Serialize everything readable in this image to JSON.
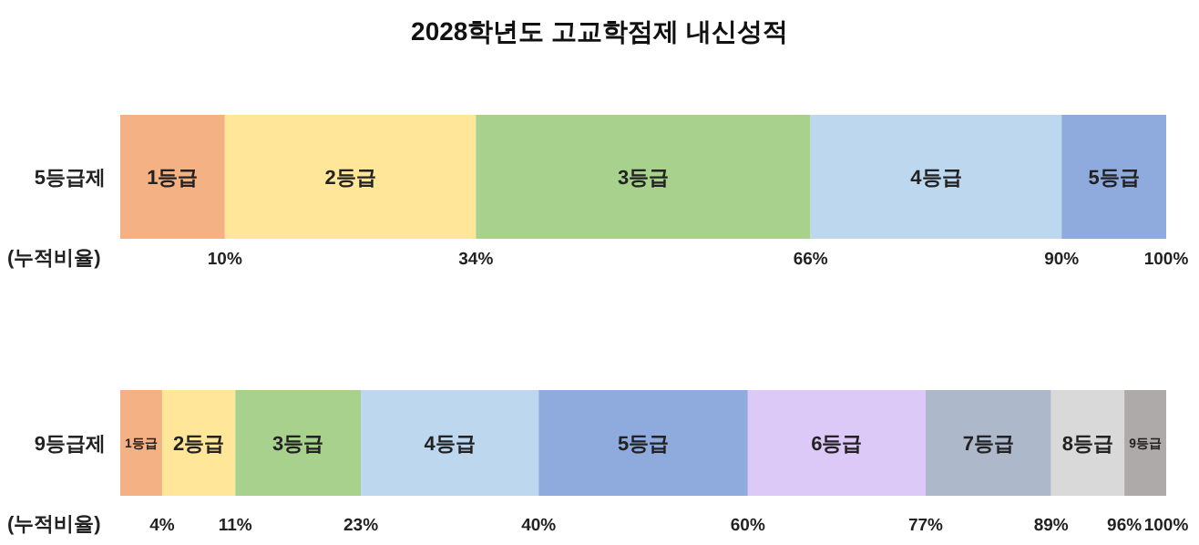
{
  "chart_data": [
    {
      "type": "bar",
      "title": "2028학년도 고교학점제 내신성적",
      "orientation": "horizontal",
      "stacked": true,
      "categories": [
        "5등급제"
      ],
      "xlabel": "(누적비율)",
      "xlim": [
        0,
        100
      ],
      "xticks": [
        {
          "value": 10,
          "label": "10%"
        },
        {
          "value": 34,
          "label": "34%"
        },
        {
          "value": 66,
          "label": "66%"
        },
        {
          "value": 90,
          "label": "90%"
        },
        {
          "value": 100,
          "label": "100%"
        }
      ],
      "tick_labels": "x",
      "legend": false,
      "grid": false,
      "series": [
        {
          "name": "1등급",
          "color": "#f4b183",
          "values": [
            10
          ]
        },
        {
          "name": "2등급",
          "color": "#ffe699",
          "values": [
            24
          ]
        },
        {
          "name": "3등급",
          "color": "#a9d18e",
          "values": [
            32
          ]
        },
        {
          "name": "4등급",
          "color": "#bdd7ee",
          "values": [
            24
          ]
        },
        {
          "name": "5등급",
          "color": "#8faadc",
          "values": [
            10
          ]
        }
      ]
    },
    {
      "type": "bar",
      "orientation": "horizontal",
      "stacked": true,
      "categories": [
        "9등급제"
      ],
      "xlabel": "(누적비율)",
      "xlim": [
        0,
        100
      ],
      "xticks": [
        {
          "value": 4,
          "label": "4%"
        },
        {
          "value": 11,
          "label": "11%"
        },
        {
          "value": 23,
          "label": "23%"
        },
        {
          "value": 40,
          "label": "40%"
        },
        {
          "value": 60,
          "label": "60%"
        },
        {
          "value": 77,
          "label": "77%"
        },
        {
          "value": 89,
          "label": "89%"
        },
        {
          "value": 96,
          "label": "96%"
        },
        {
          "value": 100,
          "label": "100%"
        }
      ],
      "tick_labels": "x",
      "legend": false,
      "grid": false,
      "series": [
        {
          "name": "1등급",
          "color": "#f4b183",
          "values": [
            4
          ]
        },
        {
          "name": "2등급",
          "color": "#ffe699",
          "values": [
            7
          ]
        },
        {
          "name": "3등급",
          "color": "#a9d18e",
          "values": [
            12
          ]
        },
        {
          "name": "4등급",
          "color": "#bdd7ee",
          "values": [
            17
          ]
        },
        {
          "name": "5등급",
          "color": "#8faadc",
          "values": [
            20
          ]
        },
        {
          "name": "6등급",
          "color": "#dcc9f7",
          "values": [
            17
          ]
        },
        {
          "name": "7등급",
          "color": "#adb9ca",
          "values": [
            12
          ]
        },
        {
          "name": "8등급",
          "color": "#d9d9d9",
          "values": [
            7
          ]
        },
        {
          "name": "9등급",
          "color": "#aeaaaa",
          "values": [
            4
          ]
        }
      ]
    }
  ]
}
